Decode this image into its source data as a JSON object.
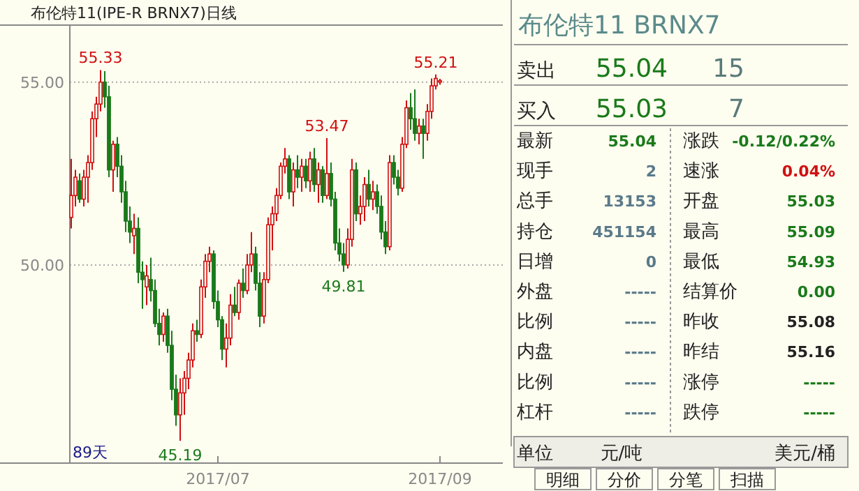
{
  "chart_data": [
    {
      "type": "candlestick",
      "title": "布伦特11(IPE-R BRNX7)日线",
      "categories": [
        null,
        null,
        null,
        null,
        null,
        null,
        null,
        null,
        null,
        null,
        null,
        null,
        null,
        null,
        null,
        null,
        null,
        null,
        null,
        null,
        null,
        null,
        null,
        null,
        null,
        null,
        null,
        null,
        null,
        null,
        null,
        null,
        null,
        null,
        null,
        "2017/07",
        null,
        null,
        null,
        null,
        null,
        null,
        null,
        null,
        null,
        null,
        null,
        null,
        null,
        null,
        null,
        null,
        null,
        null,
        null,
        null,
        null,
        null,
        null,
        null,
        null,
        null,
        null,
        null,
        null,
        null,
        null,
        null,
        null,
        null,
        null,
        null,
        null,
        null,
        null,
        null,
        null,
        null,
        null,
        null,
        null,
        null,
        null,
        null,
        null,
        null,
        null,
        null,
        "2017/09"
      ],
      "ohlc": [
        [
          51.3,
          52.9,
          51.0,
          51.9
        ],
        [
          51.9,
          52.6,
          51.6,
          52.4
        ],
        [
          52.3,
          52.5,
          51.7,
          51.8
        ],
        [
          51.8,
          52.6,
          51.6,
          52.4
        ],
        [
          52.4,
          53.0,
          51.7,
          52.8
        ],
        [
          52.8,
          54.2,
          52.6,
          54.0
        ],
        [
          54.0,
          54.6,
          53.5,
          54.4
        ],
        [
          54.4,
          55.33,
          54.2,
          55.0
        ],
        [
          55.0,
          55.3,
          54.3,
          54.6
        ],
        [
          54.6,
          54.9,
          52.4,
          52.6
        ],
        [
          52.6,
          53.4,
          52.0,
          53.3
        ],
        [
          53.3,
          53.5,
          52.4,
          52.7
        ],
        [
          52.7,
          53.0,
          51.7,
          52.0
        ],
        [
          52.0,
          52.3,
          50.9,
          51.2
        ],
        [
          51.2,
          51.6,
          50.6,
          50.9
        ],
        [
          50.8,
          51.4,
          50.3,
          51.0
        ],
        [
          51.0,
          51.3,
          49.5,
          49.8
        ],
        [
          49.8,
          50.1,
          48.8,
          49.6
        ],
        [
          49.4,
          50.0,
          48.9,
          49.7
        ],
        [
          49.6,
          50.2,
          49.0,
          49.3
        ],
        [
          49.3,
          49.6,
          48.3,
          48.4
        ],
        [
          48.4,
          48.8,
          47.8,
          48.1
        ],
        [
          48.1,
          48.7,
          47.9,
          48.6
        ],
        [
          48.6,
          48.8,
          47.6,
          47.8
        ],
        [
          47.8,
          48.2,
          46.3,
          46.6
        ],
        [
          46.6,
          47.0,
          45.6,
          45.9
        ],
        [
          45.9,
          46.9,
          45.19,
          46.5
        ],
        [
          46.5,
          47.1,
          45.9,
          46.9
        ],
        [
          46.9,
          47.6,
          46.6,
          47.4
        ],
        [
          47.4,
          48.4,
          47.2,
          48.2
        ],
        [
          48.2,
          48.5,
          47.9,
          48.1
        ],
        [
          48.1,
          49.6,
          48.0,
          49.4
        ],
        [
          49.4,
          50.3,
          49.1,
          50.1
        ],
        [
          50.1,
          50.5,
          49.8,
          50.3
        ],
        [
          50.3,
          50.4,
          48.8,
          49.0
        ],
        [
          49.0,
          49.3,
          48.3,
          48.5
        ],
        [
          48.5,
          48.6,
          47.4,
          47.7
        ],
        [
          47.7,
          48.4,
          47.2,
          48.0
        ],
        [
          48.0,
          49.2,
          47.8,
          48.9
        ],
        [
          48.9,
          49.4,
          48.6,
          48.7
        ],
        [
          48.7,
          49.6,
          48.5,
          49.5
        ],
        [
          49.5,
          49.9,
          49.1,
          49.3
        ],
        [
          49.3,
          50.3,
          49.2,
          50.0
        ],
        [
          50.0,
          50.9,
          49.8,
          50.3
        ],
        [
          50.3,
          50.5,
          49.3,
          49.5
        ],
        [
          49.5,
          49.8,
          48.3,
          48.6
        ],
        [
          48.6,
          49.8,
          48.4,
          49.6
        ],
        [
          49.6,
          51.3,
          49.5,
          51.1
        ],
        [
          51.1,
          51.6,
          50.4,
          51.4
        ],
        [
          51.4,
          52.1,
          51.2,
          51.9
        ],
        [
          51.9,
          52.8,
          51.8,
          52.7
        ],
        [
          52.7,
          53.2,
          52.5,
          52.9
        ],
        [
          52.9,
          53.0,
          51.8,
          52.0
        ],
        [
          52.0,
          52.8,
          51.6,
          52.6
        ],
        [
          52.6,
          53.0,
          52.1,
          52.4
        ],
        [
          52.4,
          52.9,
          52.0,
          52.7
        ],
        [
          52.7,
          52.9,
          52.1,
          52.3
        ],
        [
          52.3,
          53.1,
          52.0,
          52.9
        ],
        [
          52.9,
          53.2,
          52.0,
          52.2
        ],
        [
          52.2,
          52.8,
          51.7,
          52.6
        ],
        [
          52.6,
          52.7,
          51.7,
          51.9
        ],
        [
          51.9,
          53.47,
          51.8,
          52.5
        ],
        [
          52.5,
          52.8,
          51.6,
          51.8
        ],
        [
          51.8,
          52.0,
          50.4,
          50.6
        ],
        [
          50.6,
          51.0,
          50.1,
          50.3
        ],
        [
          50.3,
          50.6,
          49.81,
          50.0
        ],
        [
          50.0,
          51.0,
          49.9,
          50.7
        ],
        [
          50.7,
          52.9,
          50.5,
          52.6
        ],
        [
          52.6,
          52.8,
          51.2,
          51.4
        ],
        [
          51.4,
          51.9,
          51.1,
          51.6
        ],
        [
          51.6,
          52.4,
          51.2,
          52.2
        ],
        [
          52.2,
          52.6,
          51.6,
          51.8
        ],
        [
          51.8,
          52.3,
          51.5,
          52.0
        ],
        [
          52.0,
          52.2,
          51.4,
          51.6
        ],
        [
          51.6,
          51.9,
          50.7,
          50.9
        ],
        [
          50.9,
          51.2,
          50.3,
          50.5
        ],
        [
          50.5,
          53.0,
          50.4,
          52.8
        ],
        [
          52.8,
          53.0,
          52.2,
          52.4
        ],
        [
          52.4,
          52.6,
          51.9,
          52.1
        ],
        [
          52.1,
          53.5,
          52.0,
          53.3
        ],
        [
          53.3,
          54.5,
          53.2,
          54.3
        ],
        [
          54.3,
          54.7,
          53.7,
          54.0
        ],
        [
          54.0,
          54.8,
          53.4,
          53.6
        ],
        [
          53.6,
          54.0,
          53.3,
          53.8
        ],
        [
          53.8,
          54.0,
          52.9,
          53.6
        ],
        [
          53.6,
          54.4,
          53.4,
          54.2
        ],
        [
          54.2,
          55.1,
          54.0,
          54.9
        ],
        [
          54.9,
          55.21,
          54.8,
          55.1
        ],
        [
          55.03,
          55.09,
          54.93,
          55.04
        ]
      ],
      "ylim": [
        44.58,
        56.56
      ],
      "yticks": [
        {
          "value": 50,
          "label": "50.00"
        },
        {
          "value": 55,
          "label": "55.00"
        }
      ],
      "grid": "y",
      "annotations": [
        {
          "text": "55.33",
          "y": 55.33
        },
        {
          "text": "45.19",
          "y": 45.19
        },
        {
          "text": "53.47",
          "y": 53.47
        },
        {
          "text": "49.81",
          "y": 49.81
        },
        {
          "text": "55.21",
          "y": 55.21
        },
        "89天"
      ]
    },
    {
      "type": "other",
      "title": "布伦特11  BRNX7",
      "annotations": [
        "卖出",
        "55.04",
        "15",
        "买入",
        "55.03",
        "7",
        "最新",
        "55.04",
        "涨跌",
        "-0.12/0.22%",
        "现手",
        "2",
        "速涨",
        "0.04%",
        "总手",
        "13153",
        "开盘",
        "55.03",
        "持仓",
        "451154",
        "最高",
        "55.09",
        "日增",
        "0",
        "最低",
        "54.93",
        "外盘",
        "-----",
        "结算价",
        "0.00",
        "比例",
        "-----",
        "昨收",
        "55.08",
        "内盘",
        "-----",
        "昨结",
        "55.16",
        "比例",
        "-----",
        "涨停",
        "-----",
        "杠杆",
        "-----",
        "跌停",
        "-----",
        "单位",
        "元/吨",
        "美元/桶",
        "明细",
        "分价",
        "分笔",
        "扫描"
      ]
    }
  ]
}
